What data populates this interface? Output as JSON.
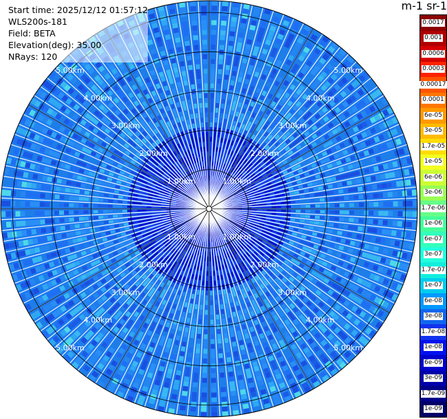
{
  "info": {
    "start_time": "Start time: 2025/12/12 01:57:12",
    "device": "WLS200s-181",
    "field": "Field: BETA",
    "elevation": "Elevation(deg): 35.00",
    "nrays": "NRays: 120"
  },
  "colorbar": {
    "title": "m-1 sr-1",
    "labels": [
      "0.0017",
      "0.001",
      "0.0006",
      "0.0003",
      "0.00017",
      "0.0001",
      "6e-05",
      "3e-05",
      "1.7e-05",
      "1e-05",
      "6e-06",
      "3e-06",
      "1.7e-06",
      "1e-06",
      "6e-07",
      "3e-07",
      "1.7e-07",
      "1e-07",
      "6e-08",
      "3e-08",
      "1.7e-08",
      "1e-08",
      "6e-09",
      "3e-09",
      "1.7e-09",
      "1e-09"
    ],
    "colors": [
      "#8b0000",
      "#b00000",
      "#d40000",
      "#ff2200",
      "#ff5500",
      "#ff7700",
      "#ff9900",
      "#ffbb00",
      "#ffdd00",
      "#f3ff20",
      "#ccff33",
      "#99ff55",
      "#66ff88",
      "#44ff99",
      "#33ffbb",
      "#22ffdd",
      "#11eedd",
      "#00ccee",
      "#0099ff",
      "#1166ee",
      "#1133ee",
      "#0011ee",
      "#0000cc",
      "#0000aa",
      "#000088",
      "#000066"
    ]
  },
  "ppi": {
    "range_rings_km": [
      1,
      2,
      3,
      4,
      5
    ],
    "ring_labels": [
      "1.00km",
      "2.00km",
      "3.00km",
      "4.00km",
      "5.00km"
    ],
    "max_range_km": 5.3,
    "n_rays": 120
  }
}
